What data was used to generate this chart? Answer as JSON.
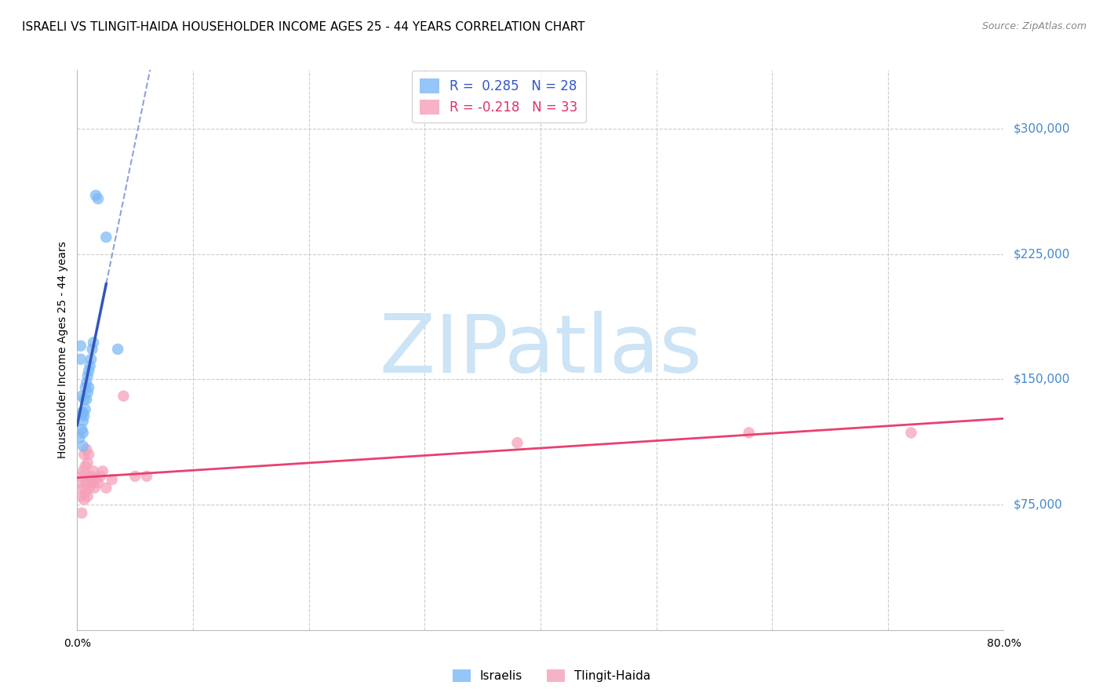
{
  "title": "ISRAELI VS TLINGIT-HAIDA HOUSEHOLDER INCOME AGES 25 - 44 YEARS CORRELATION CHART",
  "source": "Source: ZipAtlas.com",
  "ylabel": "Householder Income Ages 25 - 44 years",
  "xlim": [
    0.0,
    0.8
  ],
  "ylim": [
    0,
    335000
  ],
  "yticks": [
    75000,
    150000,
    225000,
    300000
  ],
  "ytick_labels": [
    "$75,000",
    "$150,000",
    "$225,000",
    "$300,000"
  ],
  "grid_color": "#cccccc",
  "bg_color": "#ffffff",
  "watermark": "ZIPatlas",
  "watermark_color": "#cce4f5",
  "israeli_color": "#7ab8f5",
  "tlingit_color": "#f5a0b8",
  "israeli_line": "#3355bb",
  "tlingit_line": "#e84070",
  "legend_color_isr": "#3355cc",
  "legend_color_tli": "#dd3366",
  "ytick_color": "#4488cc",
  "israeli_x": [
    0.002,
    0.003,
    0.003,
    0.004,
    0.004,
    0.004,
    0.005,
    0.005,
    0.005,
    0.005,
    0.006,
    0.006,
    0.007,
    0.007,
    0.008,
    0.008,
    0.009,
    0.009,
    0.01,
    0.01,
    0.011,
    0.012,
    0.013,
    0.014,
    0.016,
    0.018,
    0.025,
    0.035
  ],
  "israeli_y": [
    115000,
    170000,
    162000,
    130000,
    120000,
    140000,
    110000,
    125000,
    130000,
    118000,
    138000,
    128000,
    145000,
    132000,
    148000,
    138000,
    152000,
    142000,
    155000,
    145000,
    158000,
    162000,
    168000,
    172000,
    260000,
    258000,
    235000,
    168000
  ],
  "tlingit_x": [
    0.002,
    0.003,
    0.004,
    0.004,
    0.005,
    0.005,
    0.006,
    0.006,
    0.007,
    0.007,
    0.008,
    0.008,
    0.009,
    0.009,
    0.01,
    0.01,
    0.011,
    0.012,
    0.013,
    0.014,
    0.015,
    0.016,
    0.018,
    0.02,
    0.022,
    0.025,
    0.03,
    0.04,
    0.05,
    0.06,
    0.38,
    0.58,
    0.72
  ],
  "tlingit_y": [
    88000,
    80000,
    70000,
    92000,
    85000,
    95000,
    78000,
    105000,
    82000,
    98000,
    88000,
    108000,
    80000,
    100000,
    85000,
    105000,
    90000,
    92000,
    88000,
    95000,
    85000,
    90000,
    88000,
    92000,
    95000,
    85000,
    90000,
    140000,
    92000,
    92000,
    112000,
    118000,
    118000
  ],
  "isr_line_x0": 0.0,
  "isr_line_x1": 0.025,
  "isr_line_dash_x1": 0.4,
  "tli_line_x0": 0.0,
  "tli_line_x1": 0.8,
  "marker_size": 110,
  "title_fs": 11,
  "ylabel_fs": 10,
  "tick_fs": 10,
  "legend_fs": 12,
  "source_fs": 9
}
